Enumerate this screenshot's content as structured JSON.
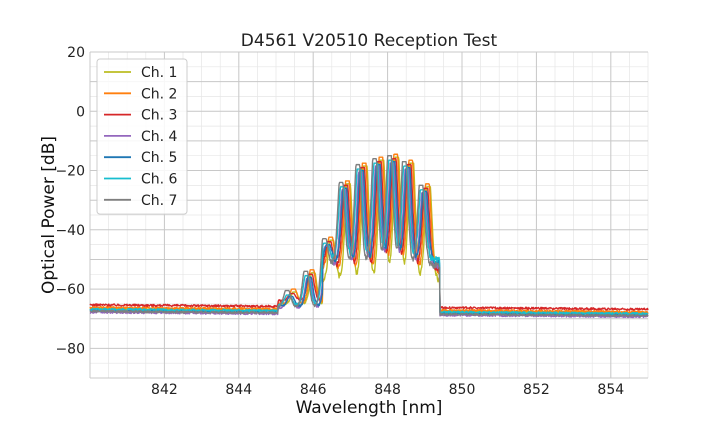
{
  "chart_data": {
    "type": "line",
    "title": "D4561 V20510 Reception Test",
    "xlabel": "Wavelength [nm]",
    "ylabel": "Optical Power [dB]",
    "xlim": [
      840,
      855
    ],
    "ylim": [
      -90,
      20
    ],
    "xticks": [
      842,
      844,
      846,
      848,
      850,
      852,
      854
    ],
    "yticks": [
      20,
      0,
      -20,
      -40,
      -60,
      -80
    ],
    "grid": true,
    "legend_position": "top-left",
    "series": [
      {
        "name": "Ch. 1",
        "color": "#bcbd22",
        "baseline": -66.5,
        "peak_offset": 0.05,
        "peak_boost": 1.5,
        "dip_floor": -57
      },
      {
        "name": "Ch. 2",
        "color": "#ff7f0e",
        "baseline": -66.2,
        "peak_offset": 0.02,
        "peak_boost": 2.5,
        "dip_floor": -54
      },
      {
        "name": "Ch. 3",
        "color": "#d62728",
        "baseline": -65.3,
        "peak_offset": -0.02,
        "peak_boost": 1.0,
        "dip_floor": -53
      },
      {
        "name": "Ch. 4",
        "color": "#9467bd",
        "baseline": -67.8,
        "peak_offset": -0.08,
        "peak_boost": -0.5,
        "dip_floor": -52
      },
      {
        "name": "Ch. 5",
        "color": "#1f77b4",
        "baseline": -67.2,
        "peak_offset": -0.05,
        "peak_boost": 0.0,
        "dip_floor": -51
      },
      {
        "name": "Ch. 6",
        "color": "#17becf",
        "baseline": -66.8,
        "peak_offset": -0.12,
        "peak_boost": 0.5,
        "dip_floor": -50
      },
      {
        "name": "Ch. 7",
        "color": "#7f7f7f",
        "baseline": -67.5,
        "peak_offset": -0.15,
        "peak_boost": 2.0,
        "dip_floor": -52
      }
    ],
    "peaks": [
      {
        "x": 845.45,
        "y": -62.5
      },
      {
        "x": 845.95,
        "y": -56
      },
      {
        "x": 846.45,
        "y": -45
      },
      {
        "x": 846.9,
        "y": -26
      },
      {
        "x": 847.35,
        "y": -20
      },
      {
        "x": 847.8,
        "y": -18
      },
      {
        "x": 848.2,
        "y": -17
      },
      {
        "x": 848.6,
        "y": -19
      },
      {
        "x": 849.05,
        "y": -27
      }
    ]
  }
}
